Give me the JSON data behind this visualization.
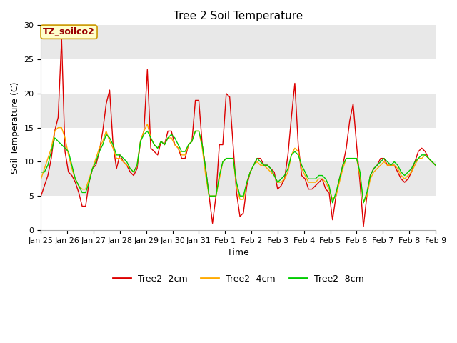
{
  "title": "Tree 2 Soil Temperature",
  "xlabel": "Time",
  "ylabel": "Soil Temperature (C)",
  "annotation": "TZ_soilco2",
  "ylim": [
    0,
    30
  ],
  "yticks": [
    0,
    5,
    10,
    15,
    20,
    25,
    30
  ],
  "xtick_labels": [
    "Jan 25",
    "Jan 26",
    "Jan 27",
    "Jan 28",
    "Jan 29",
    "Jan 30",
    "Jan 31",
    "Feb 1",
    "Feb 2",
    "Feb 3",
    "Feb 4",
    "Feb 5",
    "Feb 6",
    "Feb 7",
    "Feb 8",
    "Feb 9"
  ],
  "line_colors": [
    "#dd0000",
    "#ffaa00",
    "#00cc00"
  ],
  "line_labels": [
    "Tree2 -2cm",
    "Tree2 -4cm",
    "Tree2 -8cm"
  ],
  "fig_bg_color": "#ffffff",
  "plot_bg_color": "#e8e8e8",
  "band_color": "#ffffff",
  "grid_color": "#ffffff",
  "title_fontsize": 11,
  "tick_fontsize": 8,
  "t2cm": [
    5.0,
    6.5,
    8.0,
    10.5,
    14.5,
    16.5,
    28.0,
    11.5,
    8.5,
    8.0,
    7.0,
    5.5,
    3.5,
    3.5,
    7.0,
    9.0,
    9.5,
    11.5,
    14.5,
    18.5,
    20.5,
    12.5,
    9.0,
    11.0,
    10.0,
    9.5,
    8.5,
    8.0,
    9.0,
    13.0,
    14.5,
    23.5,
    12.0,
    11.5,
    11.0,
    13.0,
    12.5,
    14.5,
    14.5,
    12.5,
    12.0,
    10.5,
    10.5,
    12.5,
    13.0,
    19.0,
    19.0,
    12.5,
    9.0,
    5.0,
    1.0,
    5.0,
    12.5,
    12.5,
    20.0,
    19.5,
    12.5,
    5.5,
    2.0,
    2.5,
    6.5,
    8.5,
    9.5,
    10.5,
    10.5,
    9.5,
    9.5,
    9.0,
    8.5,
    6.0,
    6.5,
    7.5,
    11.0,
    16.5,
    21.5,
    12.5,
    8.0,
    7.5,
    6.0,
    6.0,
    6.5,
    7.0,
    7.5,
    6.0,
    5.5,
    1.5,
    5.0,
    7.5,
    9.5,
    12.0,
    16.0,
    18.5,
    12.5,
    7.0,
    0.5,
    5.0,
    8.0,
    9.0,
    9.5,
    10.5,
    10.5,
    9.5,
    9.5,
    9.5,
    8.5,
    7.5,
    7.0,
    7.5,
    8.5,
    10.0,
    11.5,
    12.0,
    11.5,
    10.5,
    10.0,
    9.5
  ],
  "t4cm": [
    7.5,
    9.0,
    10.5,
    12.0,
    14.5,
    15.0,
    15.0,
    13.5,
    11.0,
    9.0,
    7.5,
    6.5,
    6.0,
    6.0,
    7.5,
    9.0,
    10.5,
    12.0,
    13.0,
    14.5,
    13.0,
    12.0,
    10.5,
    10.5,
    10.0,
    9.5,
    9.0,
    8.5,
    9.5,
    13.0,
    14.5,
    15.5,
    13.5,
    12.5,
    12.0,
    13.0,
    12.5,
    13.5,
    13.5,
    12.5,
    12.0,
    11.0,
    11.0,
    12.5,
    13.0,
    14.5,
    14.5,
    12.0,
    8.0,
    5.0,
    5.0,
    5.0,
    7.5,
    10.0,
    10.5,
    10.5,
    10.5,
    6.5,
    4.5,
    4.5,
    7.0,
    8.5,
    9.5,
    10.0,
    9.5,
    9.5,
    9.0,
    8.5,
    8.0,
    7.0,
    7.0,
    7.5,
    8.5,
    11.0,
    12.0,
    11.5,
    9.0,
    8.0,
    7.0,
    7.0,
    7.0,
    7.5,
    7.5,
    7.0,
    6.0,
    4.5,
    5.0,
    7.0,
    9.0,
    10.5,
    10.5,
    10.5,
    10.5,
    8.0,
    4.0,
    5.0,
    7.5,
    8.5,
    9.0,
    9.5,
    10.0,
    9.5,
    9.5,
    9.5,
    9.0,
    8.0,
    7.5,
    8.0,
    8.5,
    9.5,
    10.5,
    10.5,
    11.0,
    10.5,
    10.0,
    9.5
  ],
  "t8cm": [
    8.5,
    8.5,
    9.5,
    11.5,
    13.5,
    13.0,
    12.5,
    12.0,
    11.5,
    9.5,
    7.5,
    6.5,
    5.5,
    5.5,
    7.0,
    9.0,
    10.0,
    11.5,
    12.5,
    14.0,
    13.5,
    12.5,
    11.0,
    11.0,
    10.5,
    10.0,
    9.0,
    8.5,
    9.5,
    13.0,
    14.0,
    14.5,
    13.5,
    12.5,
    12.0,
    13.0,
    12.5,
    13.5,
    14.0,
    13.5,
    12.5,
    11.5,
    11.5,
    12.5,
    13.0,
    14.5,
    14.5,
    12.5,
    9.0,
    5.0,
    5.0,
    5.0,
    8.0,
    10.0,
    10.5,
    10.5,
    10.5,
    7.0,
    5.0,
    5.0,
    7.0,
    8.5,
    9.5,
    10.5,
    10.0,
    9.5,
    9.5,
    9.0,
    8.0,
    7.0,
    7.5,
    8.0,
    9.0,
    11.0,
    11.5,
    11.0,
    9.5,
    8.5,
    7.5,
    7.5,
    7.5,
    8.0,
    8.0,
    7.5,
    6.5,
    4.0,
    5.5,
    7.5,
    9.5,
    10.5,
    10.5,
    10.5,
    10.5,
    8.5,
    4.0,
    5.5,
    8.0,
    9.0,
    9.5,
    10.0,
    10.5,
    10.0,
    9.5,
    10.0,
    9.5,
    8.5,
    8.0,
    8.5,
    9.0,
    10.0,
    10.5,
    11.0,
    11.0,
    10.5,
    10.0,
    9.5
  ]
}
